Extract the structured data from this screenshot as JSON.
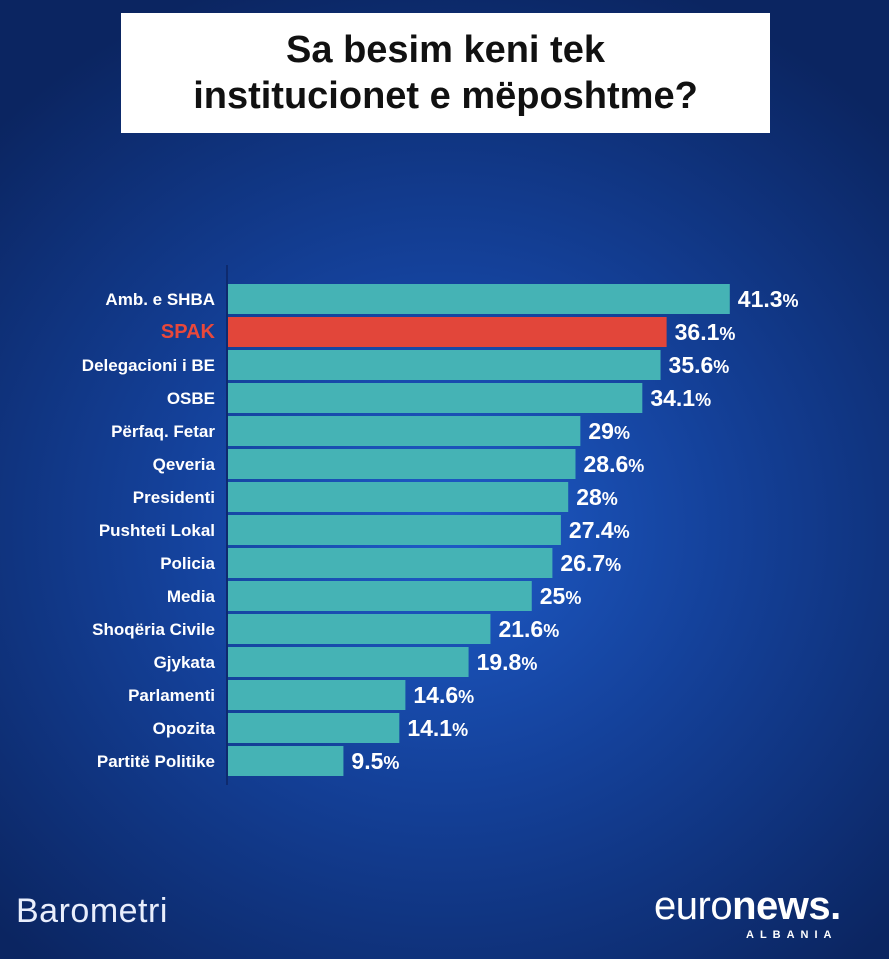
{
  "title": {
    "line1": "Sa besim keni tek",
    "line2": "institucionet e mëposhtme?"
  },
  "chart_data": {
    "type": "bar",
    "orientation": "horizontal",
    "title": "Sa besim keni tek institucionet e mëposhtme?",
    "categories": [
      "Amb. e SHBA",
      "SPAK",
      "Delegacioni i BE",
      "OSBE",
      "Përfaq. Fetar",
      "Qeveria",
      "Presidenti",
      "Pushteti Lokal",
      "Policia",
      "Media",
      "Shoqëria Civile",
      "Gjykata",
      "Parlamenti",
      "Opozita",
      "Partitë Politike"
    ],
    "values": [
      41.3,
      36.1,
      35.6,
      34.1,
      29,
      28.6,
      28,
      27.4,
      26.7,
      25,
      21.6,
      19.8,
      14.6,
      14.1,
      9.5
    ],
    "value_labels": [
      "41.3",
      "36.1",
      "35.6",
      "34.1",
      "29",
      "28.6",
      "28",
      "27.4",
      "26.7",
      "25",
      "21.6",
      "19.8",
      "14.6",
      "14.1",
      "9.5"
    ],
    "unit": "%",
    "highlight": "SPAK",
    "colors": {
      "bar": "#45b3b5",
      "highlight": "#e2463a",
      "highlight_label": "#e8483b"
    },
    "grid": false,
    "legend": "none"
  },
  "branding": {
    "left": "Barometri",
    "right_light": "euro",
    "right_bold": "news",
    "right_dot": ".",
    "right_sub": "ALBANIA"
  }
}
